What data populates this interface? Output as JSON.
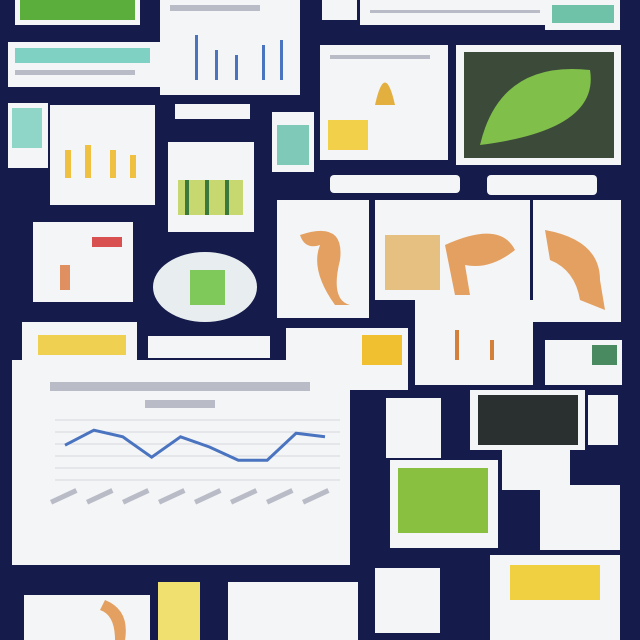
{
  "main_chart": {
    "type": "line",
    "values": [
      5.8,
      8.3,
      7.2,
      3.8,
      7.2,
      5.5,
      3.3,
      3.3,
      7.8,
      7.2
    ],
    "color": "#4a74c0",
    "ylim": [
      0,
      10
    ],
    "yticks": [
      0,
      2,
      4,
      6,
      8,
      10
    ],
    "grid": true
  }
}
